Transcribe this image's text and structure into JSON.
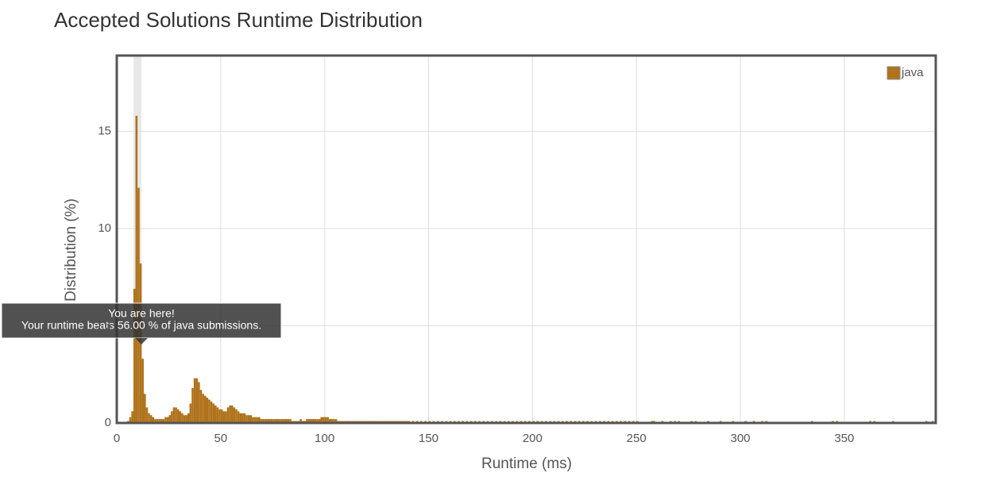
{
  "chart_data": {
    "type": "histogram",
    "title": "Accepted Solutions Runtime Distribution",
    "x_label": "Runtime (ms)",
    "y_label": "Distribution (%)",
    "annotation": [
      "You are here!",
      "Your runtime beats 56.00 % of java submissions."
    ],
    "xlim": [
      0,
      394
    ],
    "ylim": [
      0,
      18.9
    ],
    "xticks": [
      0,
      50,
      100,
      150,
      200,
      250,
      300,
      350
    ],
    "yticks": [
      0,
      5,
      10,
      15
    ],
    "grid": true,
    "legend": "top-right",
    "x": [
      5,
      6,
      7,
      8,
      9,
      10,
      11,
      12,
      13,
      14,
      15,
      16,
      17,
      18,
      19,
      20,
      21,
      22,
      23,
      24,
      25,
      26,
      27,
      28,
      29,
      30,
      31,
      32,
      33,
      34,
      35,
      36,
      37,
      38,
      39,
      40,
      41,
      42,
      43,
      44,
      45,
      46,
      47,
      48,
      49,
      50,
      51,
      52,
      53,
      54,
      55,
      56,
      57,
      58,
      59,
      60,
      61,
      62,
      63,
      64,
      65,
      66,
      67,
      68,
      69,
      70,
      71,
      72,
      73,
      74,
      75,
      76,
      77,
      78,
      79,
      80,
      81,
      82,
      83,
      84,
      85,
      86,
      87,
      88,
      89,
      90,
      91,
      92,
      93,
      94,
      95,
      96,
      97,
      98,
      99,
      100,
      101,
      102,
      103,
      104,
      105,
      106,
      107,
      108,
      109,
      110,
      111,
      112,
      113,
      114,
      115,
      116,
      117,
      118,
      119,
      120,
      121,
      122,
      123,
      124,
      125,
      126,
      127,
      128,
      129,
      130,
      131,
      132,
      133,
      134,
      135,
      136,
      137,
      138,
      139,
      140,
      142,
      144,
      146,
      148,
      150,
      152,
      154,
      156,
      158,
      160,
      162,
      164,
      166,
      168,
      170,
      172,
      174,
      176,
      178,
      180,
      182,
      184,
      186,
      188,
      190,
      192,
      194,
      196,
      198,
      200,
      202,
      204,
      206,
      208,
      210,
      212,
      214,
      216,
      218,
      220,
      222,
      224,
      226,
      228,
      230,
      232,
      234,
      236,
      238,
      240,
      242,
      244,
      246,
      248,
      250,
      257,
      258,
      262,
      266,
      268,
      270,
      276,
      278,
      284,
      290,
      296,
      302,
      306,
      310,
      312,
      334,
      344,
      346,
      362,
      364,
      373,
      389,
      392
    ],
    "series": [
      {
        "name": "java",
        "color": "#b0731c",
        "values": [
          0.1,
          0.3,
          0.6,
          6.9,
          15.8,
          12.1,
          8.2,
          3.3,
          1.5,
          0.8,
          0.5,
          0.4,
          0.3,
          0.2,
          0.2,
          0.2,
          0.2,
          0.2,
          0.3,
          0.3,
          0.4,
          0.6,
          0.8,
          0.8,
          0.7,
          0.6,
          0.5,
          0.4,
          0.4,
          0.5,
          1.0,
          1.8,
          2.3,
          2.3,
          2.1,
          1.7,
          1.5,
          1.4,
          1.3,
          1.2,
          1.1,
          1.0,
          0.9,
          0.8,
          0.7,
          0.7,
          0.6,
          0.6,
          0.8,
          0.9,
          0.9,
          0.8,
          0.7,
          0.6,
          0.5,
          0.5,
          0.5,
          0.4,
          0.4,
          0.4,
          0.3,
          0.3,
          0.3,
          0.3,
          0.2,
          0.2,
          0.2,
          0.2,
          0.2,
          0.2,
          0.2,
          0.2,
          0.2,
          0.2,
          0.2,
          0.2,
          0.2,
          0.2,
          0.2,
          0.1,
          0.1,
          0.1,
          0.1,
          0.2,
          0.1,
          0.1,
          0.2,
          0.2,
          0.2,
          0.2,
          0.2,
          0.2,
          0.2,
          0.3,
          0.3,
          0.3,
          0.3,
          0.2,
          0.2,
          0.2,
          0.2,
          0.1,
          0.1,
          0.1,
          0.1,
          0.1,
          0.1,
          0.1,
          0.1,
          0.1,
          0.1,
          0.1,
          0.1,
          0.1,
          0.1,
          0.1,
          0.1,
          0.1,
          0.1,
          0.1,
          0.1,
          0.1,
          0.1,
          0.1,
          0.1,
          0.1,
          0.1,
          0.1,
          0.1,
          0.1,
          0.1,
          0.1,
          0.1,
          0.1,
          0.1,
          0.1,
          0.1,
          0.1,
          0.1,
          0.1,
          0.1,
          0.1,
          0.1,
          0.1,
          0.1,
          0.1,
          0.1,
          0.1,
          0.1,
          0.1,
          0.1,
          0.1,
          0.1,
          0.1,
          0.1,
          0.1,
          0.1,
          0.1,
          0.1,
          0.1,
          0.1,
          0.1,
          0.1,
          0.1,
          0.1,
          0.1,
          0.1,
          0.1,
          0.1,
          0.1,
          0.1,
          0.1,
          0.1,
          0.1,
          0.1,
          0.1,
          0.1,
          0.1,
          0.1,
          0.1,
          0.1,
          0.1,
          0.1,
          0.1,
          0.1,
          0.1,
          0.1,
          0.1,
          0.1,
          0.1,
          0.1,
          0.1,
          0.1,
          0.1,
          0.1,
          0.1,
          0.1,
          0.1,
          0.1,
          0.1,
          0.1,
          0.1,
          0.1,
          0.1,
          0.1,
          0.1,
          0.1,
          0.1,
          0.1,
          0.1,
          0.1,
          0.1,
          0.1,
          0.1
        ]
      }
    ]
  }
}
